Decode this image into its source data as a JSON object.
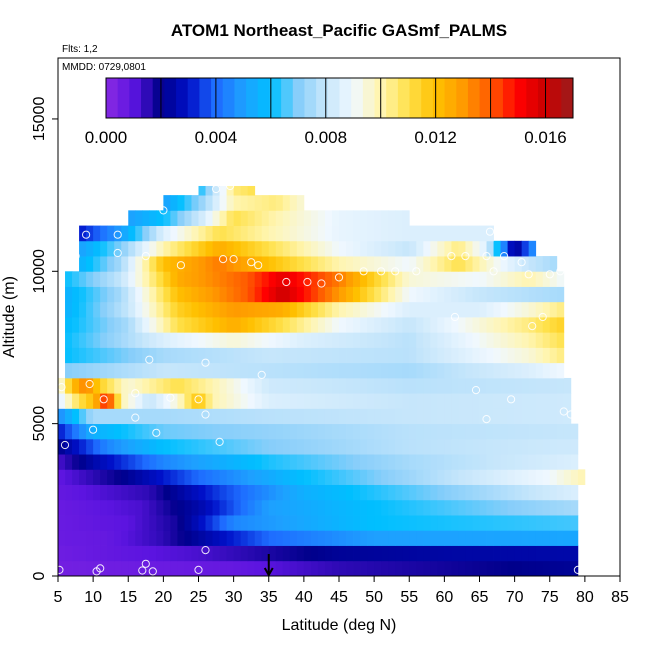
{
  "chart_data": {
    "type": "heatmap",
    "title": "ATOM1 Northeast_Pacific GASmf_PALMS",
    "flights_note": "Flts: 1,2",
    "date_note": "MMDD: 0729,0801",
    "xlabel": "Latitude (deg N)",
    "ylabel": "Altitude (m)",
    "xlim": [
      5,
      85
    ],
    "ylim": [
      0,
      17000
    ],
    "x_ticks": [
      5,
      10,
      15,
      20,
      25,
      30,
      35,
      40,
      45,
      50,
      55,
      60,
      65,
      70,
      75,
      80,
      85
    ],
    "x_tick_labels": [
      "5",
      "10",
      "15",
      "20",
      "25",
      "30",
      "35",
      "40",
      "45",
      "50",
      "55",
      "60",
      "65",
      "70",
      "75",
      "80",
      "85"
    ],
    "y_ticks": [
      0,
      5000,
      10000,
      15000
    ],
    "y_tick_labels": [
      "0",
      "5000",
      "10000",
      "15000"
    ],
    "colorbar": {
      "range": [
        0,
        0.017
      ],
      "tick_values": [
        0,
        0.004,
        0.008,
        0.012,
        0.016
      ],
      "tick_labels": [
        "0.000",
        "0.004",
        "0.008",
        "0.012",
        "0.016"
      ],
      "colors": [
        "#8a2be2",
        "#5b14e0",
        "#00008b",
        "#0010c8",
        "#1e6cff",
        "#1ea0ff",
        "#00bfff",
        "#87cefa",
        "#c6e6fb",
        "#f0f8ff",
        "#fff5b0",
        "#ffe14a",
        "#ffc000",
        "#ff9a00",
        "#ff5a00",
        "#ff0000",
        "#cc0000",
        "#9b1c1c"
      ]
    },
    "altitude_bands": [
      {
        "y0": 0,
        "y1": 500,
        "lat_max": 79,
        "anchors": [
          [
            5,
            0.0005
          ],
          [
            30,
            0.0008
          ],
          [
            45,
            0.0015
          ],
          [
            60,
            0.0018
          ],
          [
            79,
            0.0022
          ]
        ]
      },
      {
        "y0": 500,
        "y1": 1000,
        "lat_max": 79,
        "anchors": [
          [
            5,
            0.0006
          ],
          [
            25,
            0.0012
          ],
          [
            45,
            0.0022
          ],
          [
            60,
            0.0024
          ],
          [
            79,
            0.0025
          ]
        ]
      },
      {
        "y0": 1000,
        "y1": 1500,
        "lat_max": 79,
        "anchors": [
          [
            5,
            0.0007
          ],
          [
            12,
            0.0008
          ],
          [
            20,
            0.0015
          ],
          [
            35,
            0.004
          ],
          [
            50,
            0.005
          ],
          [
            79,
            0.0052
          ]
        ]
      },
      {
        "y0": 1500,
        "y1": 2000,
        "lat_max": 79,
        "anchors": [
          [
            5,
            0.0007
          ],
          [
            15,
            0.001
          ],
          [
            22,
            0.0018
          ],
          [
            30,
            0.0045
          ],
          [
            50,
            0.006
          ],
          [
            79,
            0.0065
          ]
        ]
      },
      {
        "y0": 2000,
        "y1": 2500,
        "lat_max": 79,
        "anchors": [
          [
            5,
            0.0007
          ],
          [
            17,
            0.0012
          ],
          [
            25,
            0.0025
          ],
          [
            35,
            0.005
          ],
          [
            50,
            0.006
          ],
          [
            79,
            0.0075
          ]
        ]
      },
      {
        "y0": 2500,
        "y1": 3000,
        "lat_max": 79,
        "anchors": [
          [
            5,
            0.0008
          ],
          [
            18,
            0.0015
          ],
          [
            28,
            0.0035
          ],
          [
            40,
            0.0055
          ],
          [
            60,
            0.007
          ],
          [
            79,
            0.0085
          ]
        ]
      },
      {
        "y0": 3000,
        "y1": 3500,
        "lat_max": 80,
        "anchors": [
          [
            5,
            0.0009
          ],
          [
            14,
            0.002
          ],
          [
            25,
            0.004
          ],
          [
            40,
            0.006
          ],
          [
            60,
            0.0078
          ],
          [
            75,
            0.009
          ],
          [
            80,
            0.01
          ]
        ]
      },
      {
        "y0": 3500,
        "y1": 4000,
        "lat_max": 79,
        "anchors": [
          [
            5,
            0.0012
          ],
          [
            10,
            0.0025
          ],
          [
            20,
            0.0045
          ],
          [
            35,
            0.0062
          ],
          [
            55,
            0.0075
          ],
          [
            79,
            0.0085
          ]
        ]
      },
      {
        "y0": 4000,
        "y1": 4500,
        "lat_max": 79,
        "anchors": [
          [
            5,
            0.002
          ],
          [
            12,
            0.0045
          ],
          [
            20,
            0.006
          ],
          [
            35,
            0.007
          ],
          [
            55,
            0.0078
          ],
          [
            79,
            0.0082
          ]
        ]
      },
      {
        "y0": 4500,
        "y1": 5000,
        "lat_max": 79,
        "anchors": [
          [
            5,
            0.003
          ],
          [
            10,
            0.0055
          ],
          [
            20,
            0.0068
          ],
          [
            35,
            0.0072
          ],
          [
            55,
            0.0078
          ],
          [
            79,
            0.008
          ]
        ]
      },
      {
        "y0": 5000,
        "y1": 5500,
        "lat_max": 78,
        "anchors": [
          [
            5,
            0.0045
          ],
          [
            10,
            0.0075
          ],
          [
            20,
            0.0075
          ],
          [
            35,
            0.0078
          ],
          [
            55,
            0.008
          ],
          [
            78,
            0.0082
          ]
        ]
      },
      {
        "y0": 5500,
        "y1": 6000,
        "lat_max": 78,
        "anchors": [
          [
            5,
            0.0085
          ],
          [
            8,
            0.011
          ],
          [
            10,
            0.012
          ],
          [
            12,
            0.015
          ],
          [
            14,
            0.01
          ],
          [
            18,
            0.008
          ],
          [
            22,
            0.0095
          ],
          [
            25,
            0.012
          ],
          [
            27,
            0.01
          ],
          [
            35,
            0.0085
          ],
          [
            55,
            0.008
          ],
          [
            78,
            0.0082
          ]
        ]
      },
      {
        "y0": 6000,
        "y1": 6500,
        "lat_max": 78,
        "anchors": [
          [
            5,
            0.009
          ],
          [
            7,
            0.012
          ],
          [
            9,
            0.0135
          ],
          [
            11,
            0.0115
          ],
          [
            15,
            0.0095
          ],
          [
            22,
            0.011
          ],
          [
            27,
            0.01
          ],
          [
            35,
            0.0082
          ],
          [
            55,
            0.0078
          ],
          [
            78,
            0.008
          ]
        ]
      },
      {
        "y0": 6500,
        "y1": 7000,
        "lat_max": 77,
        "anchors": [
          [
            6,
            0.007
          ],
          [
            20,
            0.008
          ],
          [
            35,
            0.0078
          ],
          [
            55,
            0.0075
          ],
          [
            72,
            0.0085
          ],
          [
            77,
            0.009
          ]
        ]
      },
      {
        "y0": 7000,
        "y1": 7500,
        "lat_max": 77,
        "anchors": [
          [
            6,
            0.006
          ],
          [
            20,
            0.0075
          ],
          [
            35,
            0.008
          ],
          [
            55,
            0.0078
          ],
          [
            72,
            0.0095
          ],
          [
            77,
            0.0105
          ]
        ]
      },
      {
        "y0": 7500,
        "y1": 8000,
        "lat_max": 77,
        "anchors": [
          [
            6,
            0.006
          ],
          [
            20,
            0.0085
          ],
          [
            30,
            0.0095
          ],
          [
            40,
            0.0085
          ],
          [
            55,
            0.0078
          ],
          [
            72,
            0.01
          ],
          [
            77,
            0.011
          ]
        ]
      },
      {
        "y0": 8000,
        "y1": 8500,
        "lat_max": 77,
        "anchors": [
          [
            6,
            0.0058
          ],
          [
            15,
            0.0075
          ],
          [
            22,
            0.011
          ],
          [
            30,
            0.0125
          ],
          [
            37,
            0.011
          ],
          [
            45,
            0.009
          ],
          [
            55,
            0.008
          ],
          [
            72,
            0.0105
          ],
          [
            77,
            0.0115
          ]
        ]
      },
      {
        "y0": 8500,
        "y1": 9000,
        "lat_max": 77,
        "anchors": [
          [
            6,
            0.0055
          ],
          [
            15,
            0.008
          ],
          [
            22,
            0.0115
          ],
          [
            30,
            0.013
          ],
          [
            37,
            0.0125
          ],
          [
            45,
            0.01
          ],
          [
            55,
            0.0085
          ],
          [
            65,
            0.0085
          ],
          [
            72,
            0.0095
          ],
          [
            77,
            0.0105
          ]
        ]
      },
      {
        "y0": 9000,
        "y1": 9500,
        "lat_max": 77,
        "anchors": [
          [
            6,
            0.0055
          ],
          [
            14,
            0.0075
          ],
          [
            22,
            0.012
          ],
          [
            32,
            0.014
          ],
          [
            37,
            0.016
          ],
          [
            45,
            0.013
          ],
          [
            55,
            0.009
          ],
          [
            65,
            0.008
          ],
          [
            77,
            0.0075
          ]
        ]
      },
      {
        "y0": 9500,
        "y1": 10000,
        "lat_max": 77,
        "anchors": [
          [
            6,
            0.006
          ],
          [
            14,
            0.008
          ],
          [
            22,
            0.0125
          ],
          [
            32,
            0.014
          ],
          [
            37,
            0.0155
          ],
          [
            45,
            0.0135
          ],
          [
            55,
            0.0095
          ],
          [
            65,
            0.009
          ],
          [
            72,
            0.01
          ],
          [
            77,
            0.009
          ]
        ]
      },
      {
        "y0": 10000,
        "y1": 10500,
        "lat_max": 76,
        "anchors": [
          [
            8,
            0.0055
          ],
          [
            14,
            0.0075
          ],
          [
            20,
            0.012
          ],
          [
            28,
            0.0135
          ],
          [
            35,
            0.012
          ],
          [
            45,
            0.01
          ],
          [
            55,
            0.009
          ],
          [
            62,
            0.011
          ],
          [
            68,
            0.009
          ],
          [
            72,
            0.008
          ],
          [
            76,
            0.0075
          ]
        ]
      },
      {
        "y0": 10500,
        "y1": 11000,
        "lat_max": 73,
        "anchors": [
          [
            8,
            0.005
          ],
          [
            14,
            0.007
          ],
          [
            20,
            0.01
          ],
          [
            28,
            0.0125
          ],
          [
            35,
            0.011
          ],
          [
            45,
            0.009
          ],
          [
            55,
            0.008
          ],
          [
            62,
            0.0105
          ],
          [
            66,
            0.0085
          ],
          [
            70,
            0.002
          ],
          [
            73,
            0.005
          ]
        ]
      },
      {
        "y0": 11000,
        "y1": 11500,
        "lat_max": 67,
        "anchors": [
          [
            8,
            0.003
          ],
          [
            14,
            0.005
          ],
          [
            20,
            0.0085
          ],
          [
            28,
            0.011
          ],
          [
            35,
            0.01
          ],
          [
            45,
            0.0088
          ],
          [
            55,
            0.0085
          ],
          [
            67,
            0.0085
          ]
        ]
      },
      {
        "y0": 11500,
        "y1": 12000,
        "lat_max": 55,
        "anchors": [
          [
            15,
            0.005
          ],
          [
            20,
            0.006
          ],
          [
            26,
            0.0085
          ],
          [
            30,
            0.011
          ],
          [
            36,
            0.01
          ],
          [
            45,
            0.0088
          ],
          [
            55,
            0.0085
          ]
        ]
      },
      {
        "y0": 12000,
        "y1": 12500,
        "lat_max": 40,
        "anchors": [
          [
            20,
            0.005
          ],
          [
            26,
            0.0075
          ],
          [
            30,
            0.01
          ],
          [
            36,
            0.0105
          ],
          [
            40,
            0.0095
          ]
        ]
      },
      {
        "y0": 12500,
        "y1": 12800,
        "lat_max": 33,
        "anchors": [
          [
            25,
            0.006
          ],
          [
            28,
            0.0085
          ],
          [
            30,
            0.0105
          ],
          [
            33,
            0.011
          ]
        ]
      }
    ],
    "band_start_lat": [
      5,
      5,
      5,
      5,
      5,
      5,
      5,
      5,
      5,
      5,
      5,
      5,
      5,
      6,
      6,
      6,
      6,
      6,
      6,
      6,
      8,
      8,
      8,
      15,
      20,
      25
    ],
    "observation_points": [
      [
        5.2,
        200
      ],
      [
        10.5,
        150
      ],
      [
        11,
        250
      ],
      [
        17.5,
        400
      ],
      [
        17,
        180
      ],
      [
        18.5,
        150
      ],
      [
        25,
        200
      ],
      [
        26,
        850
      ],
      [
        6,
        4300
      ],
      [
        10,
        4800
      ],
      [
        16,
        5200
      ],
      [
        19,
        4700
      ],
      [
        26,
        5300
      ],
      [
        28,
        4400
      ],
      [
        5.5,
        6200
      ],
      [
        9.5,
        6300
      ],
      [
        11.5,
        5800
      ],
      [
        16,
        6000
      ],
      [
        21,
        5850
      ],
      [
        25,
        5800
      ],
      [
        34,
        6600
      ],
      [
        64.5,
        6100
      ],
      [
        66,
        5150
      ],
      [
        69.5,
        5800
      ],
      [
        77,
        5400
      ],
      [
        18,
        7100
      ],
      [
        26,
        7000
      ],
      [
        72.5,
        8200
      ],
      [
        74,
        8500
      ],
      [
        61.5,
        8500
      ],
      [
        9,
        11200
      ],
      [
        13.5,
        11200
      ],
      [
        13.5,
        10600
      ],
      [
        7.5,
        10500
      ],
      [
        17.5,
        10500
      ],
      [
        22.5,
        10200
      ],
      [
        28.5,
        10400
      ],
      [
        30,
        10400
      ],
      [
        32.5,
        10300
      ],
      [
        33.5,
        10200
      ],
      [
        37.5,
        9650
      ],
      [
        40.5,
        9650
      ],
      [
        42.5,
        9600
      ],
      [
        45,
        9800
      ],
      [
        48.5,
        10000
      ],
      [
        51,
        10000
      ],
      [
        53,
        10000
      ],
      [
        56,
        10000
      ],
      [
        61,
        10500
      ],
      [
        63,
        10500
      ],
      [
        66,
        10500
      ],
      [
        67,
        10000
      ],
      [
        68.5,
        10500
      ],
      [
        71,
        10300
      ],
      [
        75,
        9900
      ],
      [
        76.5,
        10000
      ],
      [
        72,
        9900
      ],
      [
        20,
        12000
      ],
      [
        27.5,
        12700
      ],
      [
        29.5,
        12800
      ],
      [
        66.5,
        11300
      ],
      [
        78,
        5300
      ],
      [
        79,
        200
      ]
    ],
    "marker": {
      "lat": 35,
      "label": ""
    }
  }
}
